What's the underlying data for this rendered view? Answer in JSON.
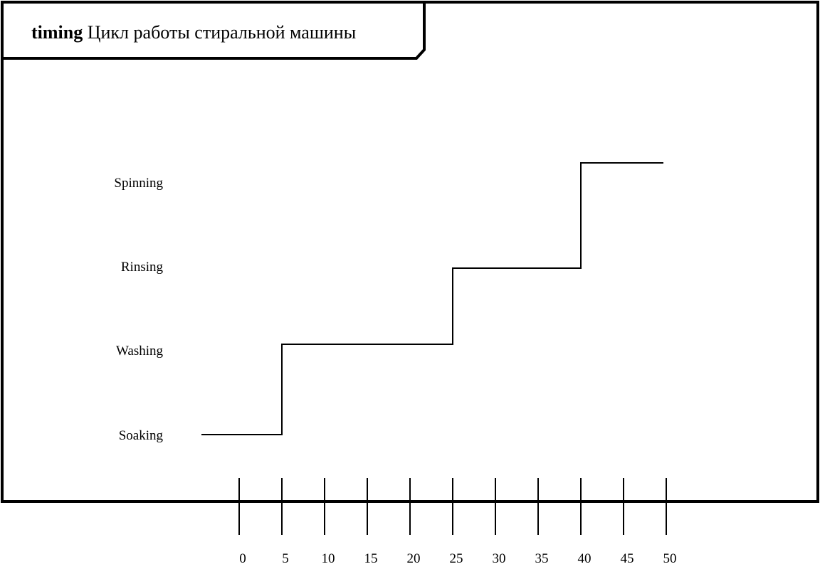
{
  "frame": {
    "keyword": "timing",
    "name": "Цикл работы стиральной машины"
  },
  "chart_data": {
    "type": "line",
    "states": [
      "Soaking",
      "Washing",
      "Rinsing",
      "Spinning"
    ],
    "ticks": [
      "0",
      "5",
      "10",
      "15",
      "20",
      "25",
      "30",
      "35",
      "40",
      "45",
      "50"
    ],
    "transitions": [
      {
        "state": "Soaking",
        "from": -5,
        "to": 5
      },
      {
        "state": "Washing",
        "from": 5,
        "to": 25
      },
      {
        "state": "Rinsing",
        "from": 25,
        "to": 40
      },
      {
        "state": "Spinning",
        "from": 40,
        "to": 50
      }
    ],
    "xlim": [
      0,
      50
    ]
  }
}
